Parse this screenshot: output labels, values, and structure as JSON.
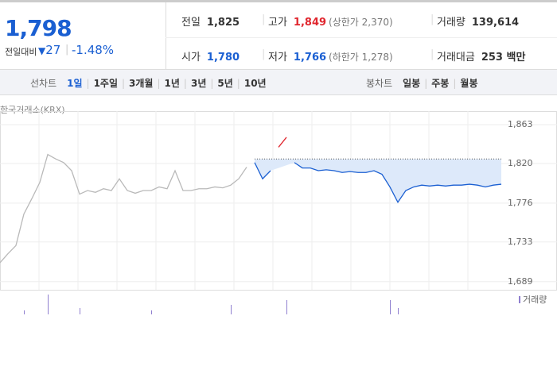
{
  "header": {
    "price": "1,798",
    "change_label": "전일대비",
    "change": "27",
    "change_pct": "-1.48%"
  },
  "stats": [
    {
      "label": "전일",
      "value": "1,825"
    },
    {
      "label": "고가",
      "value": "1,849",
      "note": "(상한가 2,370)"
    },
    {
      "label": "거래량",
      "value": "139,614"
    },
    {
      "label": "시가",
      "value": "1,780"
    },
    {
      "label": "저가",
      "value": "1,766",
      "note": "(하한가 1,278)"
    },
    {
      "label": "거래대금",
      "value": "253 백만"
    }
  ],
  "tabs": {
    "left_label": "선차트",
    "left": [
      "1일",
      "1주일",
      "3개월",
      "1년",
      "3년",
      "5년",
      "10년"
    ],
    "right_label": "봉차트",
    "right": [
      "일봉",
      "주봉",
      "월봉"
    ]
  },
  "source": "한국거래소(KRX)",
  "chart_data": {
    "type": "line",
    "ylim": [
      1680,
      1878
    ],
    "yticks": [
      {
        "value": 1863,
        "label": "1,863"
      },
      {
        "value": 1820,
        "label": "1,820"
      },
      {
        "value": 1776,
        "label": "1,776"
      },
      {
        "value": 1733,
        "label": "1,733"
      },
      {
        "value": 1689,
        "label": "1,689"
      }
    ],
    "reference": 1825,
    "fill": "#dde9fa",
    "series": [
      {
        "color": "#b9b9b9",
        "values": [
          1710,
          1720,
          1729,
          1764,
          1781,
          1799,
          1830,
          1825,
          1821,
          1812,
          1786,
          1790,
          1788,
          1792,
          1790,
          1803,
          1790,
          1787,
          1790,
          1790,
          1794,
          1792,
          1812,
          1790,
          1790,
          1792,
          1792,
          1794,
          1793,
          1796,
          1803,
          1816,
          null,
          null,
          null,
          null,
          null,
          null,
          null,
          null,
          null,
          null,
          null,
          null,
          null,
          null,
          null,
          null,
          null,
          null,
          null,
          null,
          null,
          null,
          null,
          null,
          null,
          null,
          null,
          null,
          null,
          null,
          null,
          null
        ]
      },
      {
        "color": "#1a5fd2",
        "values": [
          null,
          null,
          null,
          null,
          null,
          null,
          null,
          null,
          null,
          null,
          null,
          null,
          null,
          null,
          null,
          null,
          null,
          null,
          null,
          null,
          null,
          null,
          null,
          null,
          null,
          null,
          null,
          null,
          null,
          null,
          null,
          null,
          1821,
          1803,
          1812,
          null,
          null,
          1821,
          1815,
          1815,
          1812,
          1813,
          1812,
          1810,
          1811,
          1810,
          1810,
          1812,
          1808,
          1794,
          1777,
          1790,
          1794,
          1796,
          1795,
          1796,
          1795,
          1796,
          1796,
          1797,
          1796,
          1794,
          1796,
          1797
        ]
      },
      {
        "color": "#e0262e",
        "values": [
          null,
          null,
          null,
          null,
          null,
          null,
          null,
          null,
          null,
          null,
          null,
          null,
          null,
          null,
          null,
          null,
          null,
          null,
          null,
          null,
          null,
          null,
          null,
          null,
          null,
          null,
          null,
          null,
          null,
          null,
          null,
          null,
          null,
          null,
          null,
          1838,
          1849,
          null,
          null,
          null,
          null,
          null,
          null,
          null,
          null,
          null,
          null,
          null,
          null,
          null,
          null,
          null,
          null,
          null,
          null,
          null,
          null,
          null,
          null,
          null,
          null,
          null,
          null,
          null
        ]
      }
    ],
    "volume": {
      "name": "거래량",
      "color": "#8f7fcf",
      "vlim": [
        0,
        28
      ],
      "values": [
        0,
        0,
        0,
        5,
        0,
        0,
        25,
        0,
        0,
        0,
        8,
        0,
        0,
        0,
        0,
        0,
        0,
        0,
        0,
        5,
        0,
        0,
        0,
        0,
        0,
        0,
        0,
        0,
        0,
        12,
        0,
        0,
        0,
        0,
        0,
        0,
        18,
        0,
        0,
        0,
        0,
        0,
        0,
        0,
        0,
        0,
        0,
        0,
        0,
        18,
        8,
        0,
        0,
        0,
        0,
        0,
        0,
        0,
        0,
        0,
        0,
        0,
        0,
        0
      ]
    }
  }
}
